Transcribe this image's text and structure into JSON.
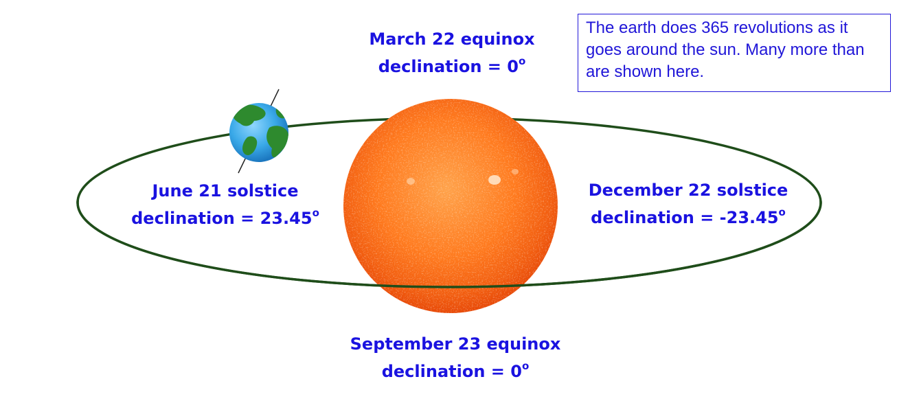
{
  "labels": {
    "march": {
      "event": "March 22 equinox",
      "decl_prefix": "declination = 0",
      "degree": "o"
    },
    "june": {
      "event": "June 21 solstice",
      "decl_prefix": "declination = 23.45",
      "degree": "o"
    },
    "december": {
      "event": "December 22 solstice",
      "decl_prefix": "declination = -23.45",
      "degree": "o"
    },
    "september": {
      "event": "September 23 equinox",
      "decl_prefix": "declination = 0",
      "degree": "o"
    }
  },
  "note": "The earth does 365 revolutions as it goes around the sun. Many more than are shown here.",
  "colors": {
    "label_text": "#1a12e0",
    "orbit": "#1f4d1a",
    "sun_core": "#ff7a1e",
    "sun_edge": "#e84a08",
    "ocean": "#3aa9e8",
    "land": "#2e8a2e",
    "axis": "#222222",
    "note_border": "#2016d8"
  },
  "icons": {
    "sun": "sun-icon",
    "earth": "earth-icon"
  }
}
